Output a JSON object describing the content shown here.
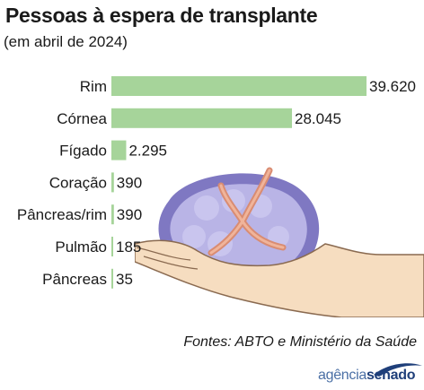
{
  "header": {
    "title": "Pessoas à espera de transplante",
    "subtitle": "(em abril de 2024)"
  },
  "footer": {
    "source": "Fontes: ABTO e Ministério da Saúde",
    "logo_part1": "agência",
    "logo_part2": "senado"
  },
  "colors": {
    "bar": "#a6d49a",
    "logo_dark": "#1f3f7a",
    "logo_light": "#4a6fa5"
  },
  "chart_data": {
    "type": "bar",
    "orientation": "horizontal",
    "title": "Pessoas à espera de transplante",
    "subtitle": "(em abril de 2024)",
    "categories": [
      "Rim",
      "Córnea",
      "Fígado",
      "Coração",
      "Pâncreas/rim",
      "Pulmão",
      "Pâncreas"
    ],
    "values": [
      39620,
      28045,
      2295,
      390,
      390,
      185,
      35
    ],
    "value_labels": [
      "39.620",
      "28.045",
      "2.295",
      "390",
      "390",
      "185",
      "35"
    ],
    "xlim": [
      0,
      39620
    ],
    "grid": false,
    "legend": "none"
  }
}
